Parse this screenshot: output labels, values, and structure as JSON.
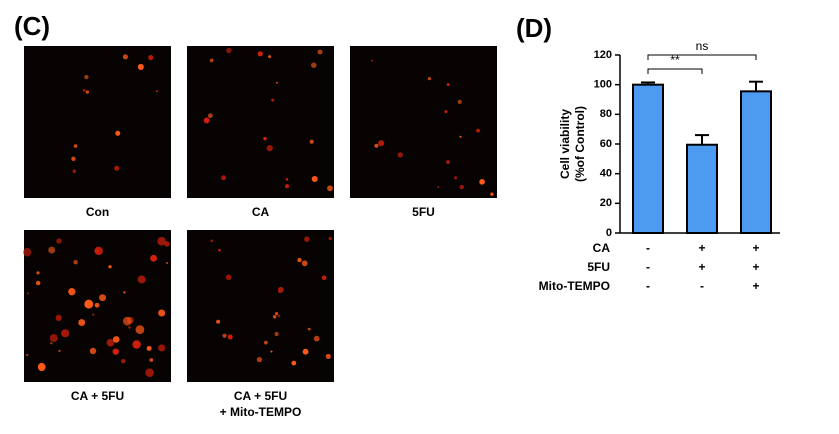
{
  "panel_c": {
    "label": "(C)",
    "images": [
      {
        "caption": [
          "Con"
        ]
      },
      {
        "caption": [
          "CA"
        ]
      },
      {
        "caption": [
          "5FU"
        ]
      },
      {
        "caption": [
          "CA + 5FU"
        ]
      },
      {
        "caption": [
          "CA + 5FU",
          "+ Mito-TEMPO"
        ]
      }
    ]
  },
  "chart_data": {
    "type": "bar",
    "panel_label": "(D)",
    "ylabel": [
      "Cell viability",
      "(%of Control)"
    ],
    "categories": [
      null,
      null,
      null
    ],
    "values": [
      100,
      59.5,
      95.5
    ],
    "errors": [
      1.5,
      6.5,
      6.5
    ],
    "color": "#4d9bf0",
    "ylim": [
      0,
      120
    ],
    "yticks": [
      0,
      20,
      40,
      60,
      80,
      100,
      120
    ],
    "conditions": [
      {
        "name": "CA",
        "signs": [
          "-",
          "+",
          "+"
        ]
      },
      {
        "name": "5FU",
        "signs": [
          "-",
          "+",
          "+"
        ]
      },
      {
        "name": "Mito-TEMPO",
        "signs": [
          "-",
          "-",
          "+"
        ]
      }
    ],
    "annotations": [
      {
        "label": "ns",
        "from": 0,
        "to": 2
      },
      {
        "label": "**",
        "from": 0,
        "to": 1
      }
    ]
  }
}
